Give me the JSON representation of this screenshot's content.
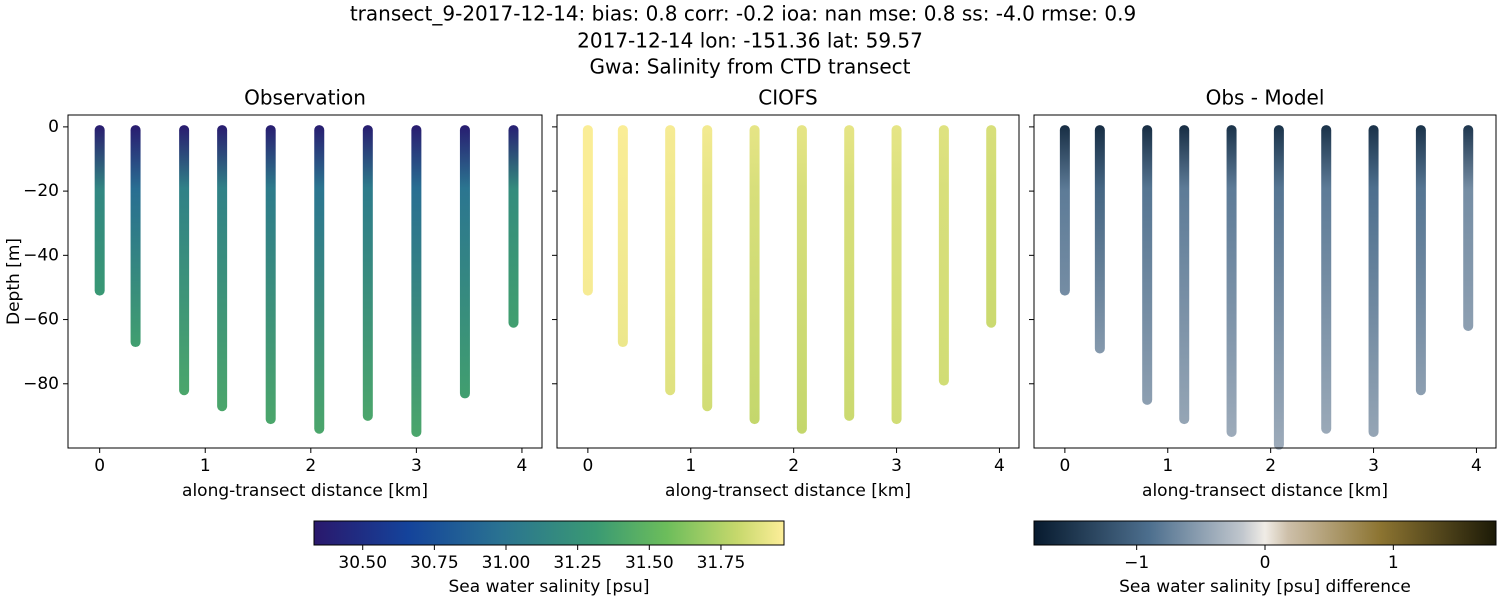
{
  "title": [
    "transect_9-2017-12-14: bias: 0.8  corr: -0.2  ioa: nan  mse: 0.8  ss: -4.0  rmse: 0.9",
    "2017-12-14 lon: -151.36 lat: 59.57",
    "Gwa: Salinity from CTD transect"
  ],
  "chart_data": [
    {
      "type": "scatter",
      "title": "Observation",
      "xlabel": "along-transect distance [km]",
      "ylabel": "Depth [m]",
      "cmap": "haline",
      "x": [
        0,
        0.34,
        0.8,
        1.16,
        1.62,
        2.08,
        2.54,
        3.0,
        3.46,
        3.92
      ],
      "bottom": [
        -51,
        -67,
        -82,
        -87,
        -91,
        -94,
        -90,
        -95,
        -83,
        -61
      ],
      "surface_values": [
        30.35,
        30.35,
        30.35,
        30.35,
        30.36,
        30.36,
        30.36,
        30.35,
        30.36,
        30.38
      ],
      "values_20m": [
        31.15,
        30.95,
        31.1,
        31.1,
        31.05,
        31.0,
        31.05,
        30.95,
        31.0,
        31.2
      ],
      "bottom_values": [
        31.3,
        31.35,
        31.4,
        31.4,
        31.4,
        31.4,
        31.4,
        31.4,
        31.35,
        31.35
      ],
      "xlim": [
        -0.3,
        4.19
      ],
      "ylim": [
        -100,
        3.7
      ],
      "xticks": [
        0,
        1,
        2,
        3,
        4
      ],
      "yticks": [
        {
          "value": 0,
          "label": "0"
        },
        {
          "value": -20,
          "label": "−20"
        },
        {
          "value": -40,
          "label": "−40"
        },
        {
          "value": -60,
          "label": "−60"
        },
        {
          "value": -80,
          "label": "−80"
        }
      ]
    },
    {
      "type": "scatter",
      "title": "CIOFS",
      "xlabel": "along-transect distance [km]",
      "cmap": "haline",
      "x": [
        0,
        0.34,
        0.8,
        1.16,
        1.62,
        2.08,
        2.54,
        3.0,
        3.46,
        3.92
      ],
      "bottom": [
        -51,
        -67,
        -82,
        -87,
        -91,
        -94,
        -90,
        -91,
        -79,
        -61
      ],
      "surface_values": [
        31.96,
        31.96,
        31.95,
        31.94,
        31.9,
        31.9,
        31.9,
        31.9,
        31.88,
        31.86
      ],
      "values_20m": [
        31.96,
        31.95,
        31.93,
        31.9,
        31.86,
        31.86,
        31.86,
        31.87,
        31.86,
        31.84
      ],
      "bottom_values": [
        31.95,
        31.92,
        31.88,
        31.84,
        31.8,
        31.8,
        31.82,
        31.84,
        31.84,
        31.82
      ],
      "xlim": [
        -0.3,
        4.19
      ],
      "ylim": [
        -100,
        3.7
      ],
      "xticks": [
        0,
        1,
        2,
        3,
        4
      ],
      "yticks": [
        0,
        -20,
        -40,
        -60,
        -80
      ]
    },
    {
      "type": "scatter",
      "title": "Obs - Model",
      "xlabel": "along-transect distance [km]",
      "cmap": "diff",
      "x": [
        0,
        0.34,
        0.8,
        1.16,
        1.62,
        2.08,
        2.54,
        3.0,
        3.46,
        3.92
      ],
      "bottom": [
        -51,
        -69,
        -85,
        -91,
        -95,
        -99,
        -94,
        -95,
        -82,
        -62
      ],
      "surface_values": [
        -1.6,
        -1.6,
        -1.6,
        -1.6,
        -1.55,
        -1.55,
        -1.55,
        -1.55,
        -1.55,
        -1.5
      ],
      "values_20m": [
        -0.8,
        -1.0,
        -0.85,
        -0.8,
        -0.8,
        -0.85,
        -0.8,
        -0.9,
        -0.85,
        -0.65
      ],
      "bottom_values": [
        -0.65,
        -0.55,
        -0.5,
        -0.45,
        -0.4,
        -0.4,
        -0.42,
        -0.45,
        -0.5,
        -0.5
      ],
      "xlim": [
        -0.3,
        4.19
      ],
      "ylim": [
        -100,
        3.7
      ],
      "xticks": [
        0,
        1,
        2,
        3,
        4
      ],
      "yticks": [
        0,
        -20,
        -40,
        -60,
        -80
      ]
    },
    {
      "type": "colorbar",
      "label": "Sea water salinity [psu]",
      "cmap": "haline",
      "xlim": [
        30.33,
        31.97
      ],
      "xticks": [
        {
          "value": 30.5,
          "label": "30.50"
        },
        {
          "value": 30.75,
          "label": "30.75"
        },
        {
          "value": 31.0,
          "label": "31.00"
        },
        {
          "value": 31.25,
          "label": "31.25"
        },
        {
          "value": 31.5,
          "label": "31.50"
        },
        {
          "value": 31.75,
          "label": "31.75"
        }
      ]
    },
    {
      "type": "colorbar",
      "label": "Sea water salinity [psu] difference",
      "cmap": "diff",
      "xlim": [
        -1.8,
        1.8
      ],
      "xticks": [
        {
          "value": -1,
          "label": "−1"
        },
        0,
        1
      ]
    }
  ]
}
